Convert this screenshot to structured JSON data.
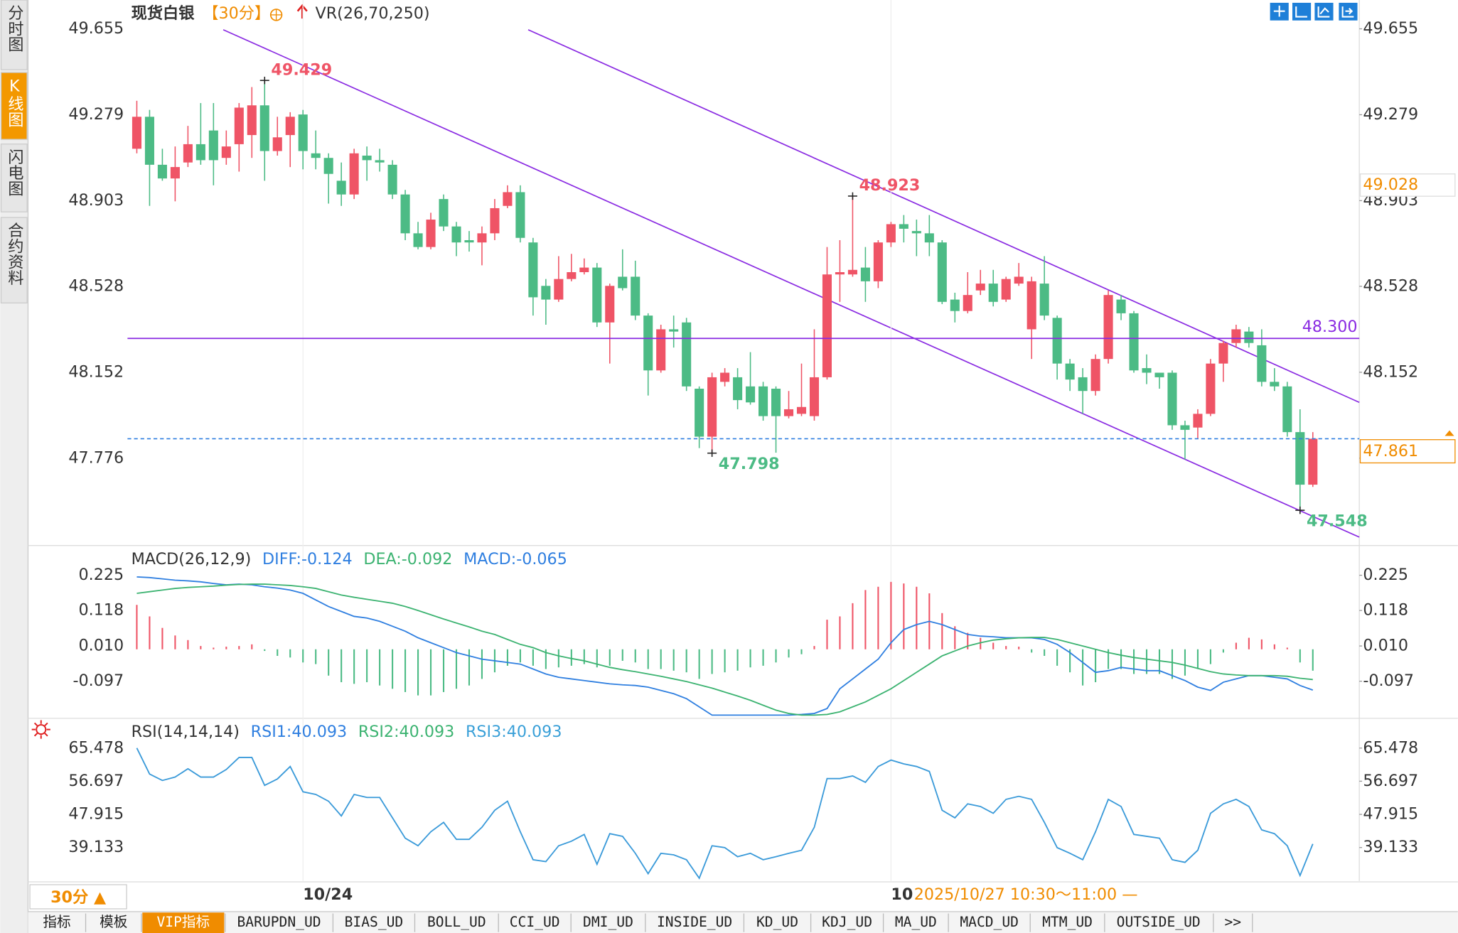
{
  "sidebar": [
    "分时图",
    "K线图",
    "闪电图",
    "合约资料"
  ],
  "header": {
    "title": "现货白银",
    "period": "【30分】",
    "indicator": "VR(26,70,250)"
  },
  "chart_data": [
    {
      "type": "candlestick",
      "categories": [
        null,
        null,
        null,
        null,
        null,
        null,
        null,
        null,
        null,
        null,
        null,
        null,
        null,
        "10/24",
        null,
        null,
        null,
        null,
        null,
        null,
        null,
        null,
        null,
        null,
        null,
        null,
        null,
        null,
        null,
        null,
        null,
        null,
        null,
        null,
        null,
        null,
        null,
        null,
        null,
        null,
        null,
        null,
        null,
        null,
        null,
        null,
        null,
        null,
        null,
        null,
        null,
        null,
        null,
        null,
        null,
        null,
        null,
        null,
        null,
        "10",
        null,
        null,
        null,
        null,
        null,
        null,
        null,
        null,
        null,
        null,
        null,
        null,
        null,
        null,
        null,
        null,
        null,
        null,
        null,
        null,
        null,
        null,
        null,
        null,
        null,
        null,
        null,
        null,
        null,
        null,
        null,
        null,
        null
      ],
      "open": [
        49.13,
        49.27,
        49.06,
        49.0,
        49.07,
        49.15,
        49.21,
        49.09,
        49.15,
        49.19,
        49.32,
        49.12,
        49.19,
        49.28,
        49.11,
        49.09,
        48.99,
        48.93,
        49.1,
        49.08,
        49.06,
        48.93,
        48.76,
        48.7,
        48.91,
        48.79,
        48.73,
        48.72,
        48.76,
        48.88,
        48.94,
        48.72,
        48.53,
        48.47,
        48.56,
        48.59,
        48.61,
        48.37,
        48.57,
        48.57,
        48.4,
        48.16,
        48.34,
        48.37,
        48.08,
        47.87,
        48.11,
        48.13,
        48.09,
        48.09,
        48.08,
        47.96,
        47.97,
        47.96,
        48.13,
        48.58,
        48.58,
        48.61,
        48.55,
        48.72,
        48.8,
        48.77,
        48.76,
        48.72,
        48.47,
        48.42,
        48.51,
        48.54,
        48.47,
        48.54,
        48.34,
        48.54,
        48.39,
        48.19,
        48.13,
        48.07,
        48.21,
        48.47,
        48.41,
        48.17,
        48.15,
        48.15,
        47.92,
        47.91,
        47.97,
        48.19,
        48.28,
        48.33,
        48.27,
        48.11,
        48.09,
        47.89,
        47.66
      ],
      "high": [
        49.34,
        49.3,
        49.13,
        49.14,
        49.23,
        49.33,
        49.33,
        49.21,
        49.33,
        49.4,
        49.429,
        49.27,
        49.29,
        49.3,
        49.21,
        49.11,
        49.07,
        49.13,
        49.14,
        49.13,
        49.08,
        48.95,
        48.81,
        48.85,
        48.93,
        48.81,
        48.77,
        48.79,
        48.91,
        48.97,
        48.97,
        48.74,
        48.56,
        48.66,
        48.67,
        48.65,
        48.63,
        48.54,
        48.69,
        48.64,
        48.41,
        48.36,
        48.4,
        48.39,
        48.09,
        48.15,
        48.17,
        48.17,
        48.24,
        48.11,
        48.09,
        48.07,
        48.19,
        48.34,
        48.7,
        48.73,
        48.923,
        48.7,
        48.73,
        48.81,
        48.84,
        48.82,
        48.84,
        48.73,
        48.5,
        48.59,
        48.6,
        48.6,
        48.57,
        48.63,
        48.57,
        48.66,
        48.4,
        48.21,
        48.17,
        48.23,
        48.51,
        48.49,
        48.42,
        48.23,
        48.15,
        48.16,
        47.94,
        47.99,
        48.21,
        48.29,
        48.36,
        48.35,
        48.34,
        48.17,
        48.11,
        47.99,
        47.89
      ],
      "low": [
        49.11,
        48.88,
        48.99,
        48.9,
        49.05,
        49.06,
        48.97,
        49.06,
        49.03,
        49.09,
        48.99,
        49.1,
        49.05,
        49.04,
        49.04,
        48.89,
        48.88,
        48.91,
        48.99,
        49.03,
        48.91,
        48.73,
        48.69,
        48.69,
        48.77,
        48.66,
        48.68,
        48.62,
        48.73,
        48.87,
        48.72,
        48.4,
        48.36,
        48.46,
        48.55,
        48.58,
        48.35,
        48.19,
        48.51,
        48.38,
        48.05,
        48.15,
        48.26,
        48.07,
        47.82,
        47.798,
        48.09,
        47.99,
        48.01,
        47.94,
        47.8,
        47.95,
        47.96,
        47.94,
        48.12,
        48.46,
        48.57,
        48.46,
        48.52,
        48.7,
        48.72,
        48.66,
        48.66,
        48.45,
        48.37,
        48.41,
        48.49,
        48.44,
        48.46,
        48.53,
        48.21,
        48.38,
        48.12,
        48.07,
        47.97,
        48.05,
        48.19,
        48.38,
        48.15,
        48.1,
        48.08,
        47.9,
        47.77,
        47.86,
        47.96,
        48.11,
        48.26,
        48.26,
        48.09,
        48.07,
        47.87,
        47.548,
        47.65
      ],
      "close": [
        49.27,
        49.06,
        49.0,
        49.05,
        49.15,
        49.08,
        49.08,
        49.14,
        49.31,
        49.32,
        49.12,
        49.18,
        49.27,
        49.12,
        49.09,
        49.02,
        48.93,
        49.11,
        49.08,
        49.07,
        48.93,
        48.76,
        48.7,
        48.82,
        48.79,
        48.72,
        48.72,
        48.76,
        48.87,
        48.94,
        48.74,
        48.48,
        48.47,
        48.56,
        48.59,
        48.61,
        48.37,
        48.53,
        48.52,
        48.4,
        48.16,
        48.34,
        48.33,
        48.09,
        47.87,
        48.13,
        48.15,
        48.03,
        48.02,
        47.96,
        47.96,
        47.99,
        48.0,
        48.13,
        48.58,
        48.59,
        48.6,
        48.55,
        48.72,
        48.8,
        48.78,
        48.76,
        48.72,
        48.46,
        48.42,
        48.49,
        48.54,
        48.46,
        48.56,
        48.57,
        48.55,
        48.4,
        48.19,
        48.12,
        48.07,
        48.21,
        48.49,
        48.41,
        48.16,
        48.15,
        48.13,
        47.92,
        47.9,
        47.97,
        48.19,
        48.28,
        48.34,
        48.28,
        48.11,
        48.09,
        47.89,
        47.66,
        47.861
      ],
      "up_color": "#ef5466",
      "down_color": "#4cbb85",
      "ylim": [
        47.402,
        49.781
      ],
      "yticks": [
        49.655,
        49.279,
        48.903,
        48.528,
        48.152,
        47.776
      ],
      "annotations": [
        {
          "value": 49.429,
          "label": "49.429",
          "kind": "high",
          "color": "#ef5466"
        },
        {
          "value": 48.923,
          "label": "48.923",
          "kind": "high",
          "color": "#ef5466"
        },
        {
          "value": 47.798,
          "label": "47.798",
          "kind": "low",
          "color": "#4cbb85"
        },
        {
          "value": 47.548,
          "label": "47.548",
          "kind": "low",
          "color": "#4cbb85"
        }
      ],
      "price_lines": [
        {
          "value": 48.3,
          "label": "48.300",
          "color": "#8a2be2",
          "label_color": "#8a2be2",
          "dashed": false,
          "boxed": false
        },
        {
          "value": 47.861,
          "label": "47.861",
          "color": "#2f7fe0",
          "label_color": "#f08c00",
          "dashed": true,
          "boxed": true
        }
      ],
      "crosshair": {
        "value": 49.028,
        "label": "49.028",
        "label_color": "#f08c00"
      }
    },
    {
      "type": "combo",
      "title": "MACD(26,12,9)",
      "ylim": [
        -0.207,
        0.307
      ],
      "yticks": [
        0.225,
        0.118,
        {
          "value": 0.01,
          "label": "0.010"
        },
        -0.097
      ],
      "series": [
        {
          "name": "DIFF:-0.124",
          "color": "#2f7fe0",
          "style": "line",
          "values": [
            0.22,
            0.218,
            0.214,
            0.21,
            0.208,
            0.205,
            0.2,
            0.196,
            0.198,
            0.196,
            0.19,
            0.186,
            0.18,
            0.17,
            0.15,
            0.13,
            0.115,
            0.1,
            0.095,
            0.085,
            0.07,
            0.055,
            0.035,
            0.02,
            0.005,
            -0.01,
            -0.02,
            -0.03,
            -0.035,
            -0.04,
            -0.045,
            -0.06,
            -0.075,
            -0.085,
            -0.09,
            -0.095,
            -0.1,
            -0.105,
            -0.108,
            -0.11,
            -0.115,
            -0.125,
            -0.135,
            -0.15,
            -0.175,
            -0.2,
            -0.2,
            -0.2,
            -0.2,
            -0.2,
            -0.2,
            -0.2,
            -0.198,
            -0.195,
            -0.18,
            -0.12,
            -0.09,
            -0.06,
            -0.03,
            0.02,
            0.06,
            0.075,
            0.085,
            0.075,
            0.06,
            0.045,
            0.04,
            0.038,
            0.035,
            0.035,
            0.035,
            0.03,
            0.015,
            -0.01,
            -0.04,
            -0.07,
            -0.065,
            -0.055,
            -0.06,
            -0.065,
            -0.065,
            -0.08,
            -0.095,
            -0.115,
            -0.125,
            -0.1,
            -0.09,
            -0.08,
            -0.08,
            -0.085,
            -0.09,
            -0.11,
            -0.124
          ]
        },
        {
          "name": "DEA:-0.092",
          "color": "#3cb371",
          "style": "line",
          "values": [
            0.17,
            0.175,
            0.18,
            0.185,
            0.188,
            0.19,
            0.192,
            0.195,
            0.197,
            0.198,
            0.198,
            0.196,
            0.194,
            0.19,
            0.185,
            0.175,
            0.165,
            0.158,
            0.152,
            0.146,
            0.14,
            0.13,
            0.118,
            0.105,
            0.092,
            0.08,
            0.068,
            0.055,
            0.045,
            0.03,
            0.015,
            0.005,
            -0.01,
            -0.02,
            -0.028,
            -0.035,
            -0.045,
            -0.055,
            -0.062,
            -0.068,
            -0.075,
            -0.082,
            -0.09,
            -0.098,
            -0.108,
            -0.118,
            -0.13,
            -0.142,
            -0.155,
            -0.17,
            -0.185,
            -0.195,
            -0.2,
            -0.2,
            -0.198,
            -0.19,
            -0.175,
            -0.16,
            -0.14,
            -0.12,
            -0.095,
            -0.07,
            -0.045,
            -0.02,
            -0.005,
            0.01,
            0.02,
            0.028,
            0.032,
            0.035,
            0.036,
            0.036,
            0.03,
            0.02,
            0.01,
            0.0,
            -0.01,
            -0.018,
            -0.025,
            -0.03,
            -0.035,
            -0.04,
            -0.048,
            -0.058,
            -0.068,
            -0.075,
            -0.078,
            -0.08,
            -0.08,
            -0.08,
            -0.082,
            -0.088,
            -0.092
          ]
        },
        {
          "name": "MACD:-0.065",
          "color": "#2f7fe0",
          "style": "histogram",
          "up_color": "#ef5466",
          "down_color": "#4cbb85",
          "values": [
            0.135,
            0.1,
            0.065,
            0.042,
            0.028,
            0.01,
            0.005,
            0.008,
            0.01,
            0.015,
            -0.005,
            -0.02,
            -0.025,
            -0.04,
            -0.045,
            -0.08,
            -0.1,
            -0.105,
            -0.1,
            -0.11,
            -0.12,
            -0.13,
            -0.14,
            -0.14,
            -0.13,
            -0.12,
            -0.11,
            -0.09,
            -0.07,
            -0.05,
            -0.04,
            -0.05,
            -0.06,
            -0.055,
            -0.05,
            -0.045,
            -0.055,
            -0.05,
            -0.035,
            -0.04,
            -0.06,
            -0.06,
            -0.065,
            -0.07,
            -0.09,
            -0.075,
            -0.07,
            -0.065,
            -0.055,
            -0.05,
            -0.04,
            -0.025,
            -0.015,
            0.01,
            0.09,
            0.1,
            0.14,
            0.18,
            0.19,
            0.205,
            0.2,
            0.19,
            0.17,
            0.11,
            0.07,
            0.05,
            0.035,
            0.02,
            0.01,
            0.008,
            -0.01,
            -0.02,
            -0.05,
            -0.07,
            -0.11,
            -0.1,
            -0.06,
            -0.06,
            -0.075,
            -0.075,
            -0.075,
            -0.09,
            -0.08,
            -0.06,
            -0.045,
            -0.01,
            0.02,
            0.035,
            0.03,
            0.015,
            0.005,
            -0.04,
            -0.065
          ]
        }
      ]
    },
    {
      "type": "line",
      "title": "RSI(14,14,14)",
      "ylim": [
        30.27,
        72.87
      ],
      "yticks": [
        65.478,
        56.697,
        47.915,
        39.133
      ],
      "legend": [
        "RSI1:40.093",
        "RSI2:40.093",
        "RSI3:40.093"
      ],
      "legend_colors": [
        "#2f7fe0",
        "#3cb371",
        "#3aa0d8"
      ],
      "series": [
        {
          "color": "#3a9ad9",
          "values": [
            65.5,
            58.6,
            56.9,
            57.8,
            60.0,
            57.8,
            57.8,
            59.8,
            63.0,
            63.0,
            55.6,
            57.3,
            60.6,
            53.9,
            53.2,
            51.4,
            47.5,
            53.2,
            52.4,
            52.4,
            47.0,
            41.6,
            39.6,
            43.3,
            45.8,
            41.3,
            41.3,
            44.5,
            49.0,
            51.4,
            43.3,
            35.9,
            35.4,
            39.6,
            40.8,
            42.6,
            34.7,
            42.8,
            42.1,
            37.6,
            32.2,
            37.6,
            37.2,
            35.9,
            31.0,
            39.6,
            39.1,
            36.7,
            37.6,
            35.9,
            36.7,
            37.6,
            38.4,
            44.5,
            57.4,
            57.4,
            58.1,
            56.4,
            60.6,
            62.3,
            61.3,
            60.6,
            59.3,
            49.0,
            47.0,
            50.7,
            50.0,
            48.2,
            51.9,
            52.7,
            51.9,
            45.8,
            39.1,
            37.6,
            35.9,
            43.3,
            51.9,
            50.0,
            42.6,
            42.1,
            41.6,
            35.9,
            35.2,
            38.4,
            48.2,
            50.7,
            51.9,
            50.0,
            43.8,
            42.8,
            39.6,
            31.7,
            40.093
          ]
        }
      ]
    }
  ],
  "footer": {
    "period_button": "30分 ▲",
    "crosshair_label": "2025/10/27 10:30～11:00 —",
    "tabs": [
      "指标",
      "模板",
      "VIP指标",
      "BARUPDN_UD",
      "BIAS_UD",
      "BOLL_UD",
      "CCI_UD",
      "DMI_UD",
      "INSIDE_UD",
      "KD_UD",
      "KDJ_UD",
      "MA_UD",
      "MACD_UD",
      "MTM_UD",
      "OUTSIDE_UD",
      ">>"
    ]
  }
}
